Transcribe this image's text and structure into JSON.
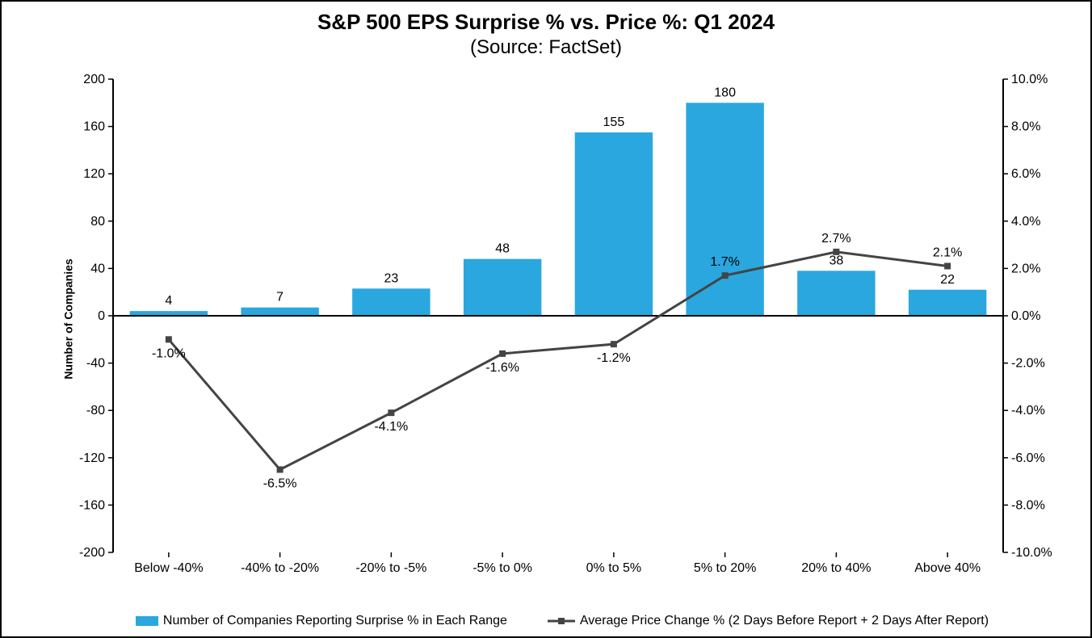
{
  "chart": {
    "type": "bar+line",
    "title": "S&P 500 EPS Surprise % vs. Price %: Q1 2024",
    "subtitle": "(Source: FactSet)",
    "title_fontsize": 26,
    "subtitle_fontsize": 24,
    "y_axis_left": {
      "label": "Number of Companies",
      "min": -200,
      "max": 200,
      "tick_step": 40,
      "ticks": [
        -200,
        -160,
        -120,
        -80,
        -40,
        0,
        40,
        80,
        120,
        160,
        200
      ]
    },
    "y_axis_right": {
      "min": -10.0,
      "max": 10.0,
      "tick_step": 2.0,
      "ticks": [
        -10.0,
        -8.0,
        -6.0,
        -4.0,
        -2.0,
        0.0,
        2.0,
        4.0,
        6.0,
        8.0,
        10.0
      ],
      "format": "pct1"
    },
    "categories": [
      "Below -40%",
      "-40% to -20%",
      "-20% to -5%",
      "-5% to 0%",
      "0% to 5%",
      "5% to 20%",
      "20% to 40%",
      "Above 40%"
    ],
    "bars": {
      "values": [
        4,
        7,
        23,
        48,
        155,
        180,
        38,
        22
      ],
      "color": "#2aa7df",
      "width": 0.7,
      "label_fontsize": 16
    },
    "line": {
      "values_pct": [
        -1.0,
        -6.5,
        -4.1,
        -1.6,
        -1.2,
        1.7,
        2.7,
        2.1
      ],
      "color": "#444444",
      "stroke_width": 3,
      "marker_size": 8,
      "marker_shape": "square",
      "label_fontsize": 16,
      "label_positions": [
        "below",
        "below",
        "below",
        "below",
        "below",
        "above",
        "above",
        "above"
      ]
    },
    "axis_color": "#000000",
    "axis_stroke_width": 2,
    "tick_length": 6,
    "tick_fontsize": 16,
    "category_fontsize": 16,
    "background_color": "#ffffff",
    "legend": {
      "series_bar": "Number of Companies Reporting Surprise % in Each Range",
      "series_line": "Average Price Change % (2 Days Before Report + 2 Days After Report)",
      "fontsize": 16
    }
  }
}
